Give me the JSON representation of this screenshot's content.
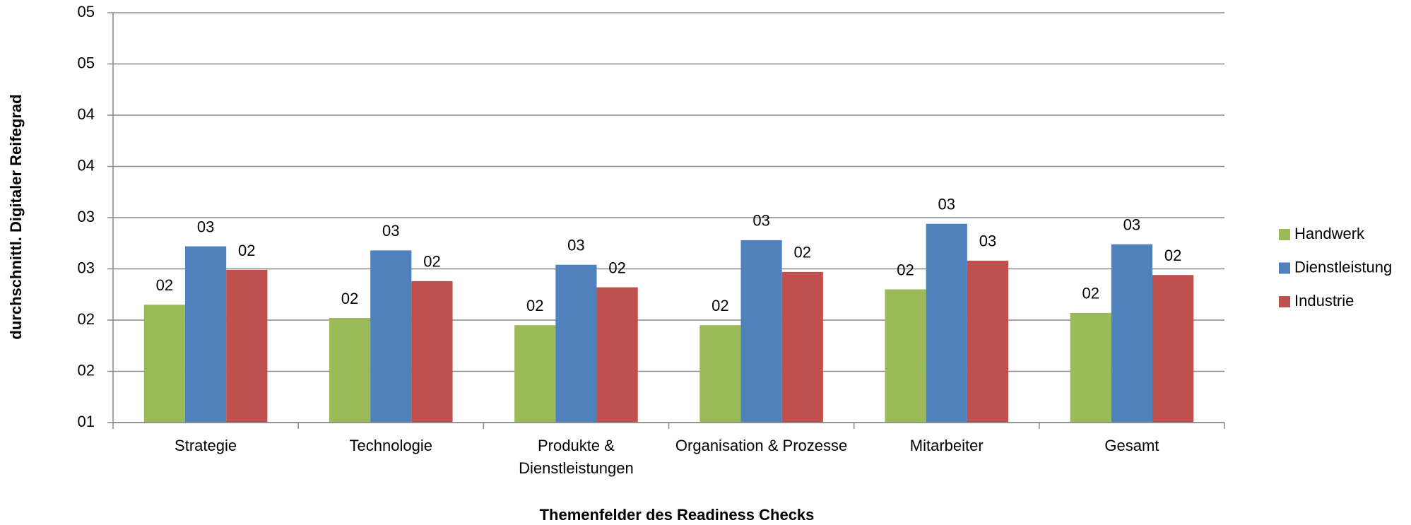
{
  "chart_data": {
    "type": "bar",
    "x_label": "Themenfelder des Readiness Checks",
    "y_label": "durchschnittl. Digitaler Reifegrad",
    "categories": [
      "Strategie",
      "Technologie",
      "Produkte & Dienstleistungen",
      "Organisation & Prozesse",
      "Mitarbeiter",
      "Gesamt"
    ],
    "series": [
      {
        "name": "Handwerk",
        "color": "#9bbb59",
        "values": [
          2.15,
          2.02,
          1.95,
          1.95,
          2.3,
          2.07
        ],
        "value_labels": [
          "02",
          "02",
          "02",
          "02",
          "02",
          "02"
        ]
      },
      {
        "name": "Dienstleistung",
        "color": "#4f81bd",
        "values": [
          2.72,
          2.68,
          2.54,
          2.78,
          2.94,
          2.74
        ],
        "value_labels": [
          "03",
          "03",
          "03",
          "03",
          "03",
          "03"
        ]
      },
      {
        "name": "Industrie",
        "color": "#c0504d",
        "values": [
          2.49,
          2.38,
          2.32,
          2.47,
          2.58,
          2.44
        ],
        "value_labels": [
          "02",
          "02",
          "02",
          "02",
          "03",
          "02"
        ]
      }
    ],
    "ylim": [
      1,
      5
    ],
    "yticks": [
      {
        "value": 1,
        "label": "01"
      },
      {
        "value": 1.5,
        "label": "02"
      },
      {
        "value": 2,
        "label": "02"
      },
      {
        "value": 2.5,
        "label": "03"
      },
      {
        "value": 3,
        "label": "03"
      },
      {
        "value": 3.5,
        "label": "04"
      },
      {
        "value": 4,
        "label": "04"
      },
      {
        "value": 4.5,
        "label": "05"
      },
      {
        "value": 5,
        "label": "05"
      }
    ],
    "grid": true,
    "legend": "right"
  }
}
